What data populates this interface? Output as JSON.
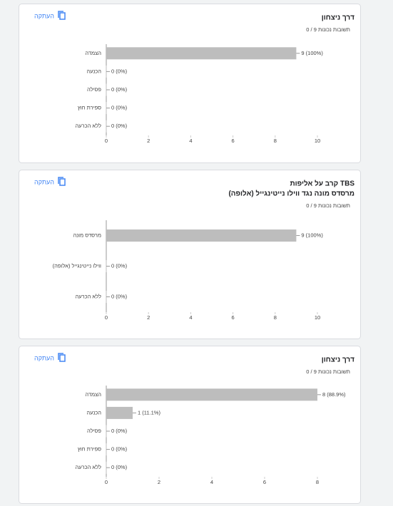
{
  "chart_data": [
    {
      "type": "bar",
      "orientation": "horizontal",
      "title": "דרך ניצחון",
      "score": "0 / 9 תשובות נכונות",
      "copy_button": "העתקה",
      "categories": [
        "הצמדה",
        "הכנעה",
        "פסילה",
        "ספירת חוץ",
        "ללא הכרעה"
      ],
      "values": [
        9,
        0,
        0,
        0,
        0
      ],
      "value_labels": [
        "9 (100%)",
        "0 (0%)",
        "0 (0%)",
        "0 (0%)",
        "0 (0%)"
      ],
      "color": "#bdbdbd",
      "xlim": [
        0,
        10
      ],
      "xticks": [
        0,
        2,
        4,
        6,
        8,
        10
      ]
    },
    {
      "type": "bar",
      "orientation": "horizontal",
      "title": "קרב על אליפות TBS",
      "subtitle": "מרסדס מונה נגד ווילו נייטינגייל (אלופה)",
      "score": "0 / 9 תשובות נכונות",
      "copy_button": "העתקה",
      "categories": [
        "מרסדס מונה",
        "ווילו נייטינגייל (אלופה)",
        "ללא הכרעה"
      ],
      "values": [
        9,
        0,
        0
      ],
      "value_labels": [
        "9 (100%)",
        "0 (0%)",
        "0 (0%)"
      ],
      "color": "#bdbdbd",
      "xlim": [
        0,
        10
      ],
      "xticks": [
        0,
        2,
        4,
        6,
        8,
        10
      ]
    },
    {
      "type": "bar",
      "orientation": "horizontal",
      "title": "דרך ניצחון",
      "score": "0 / 9 תשובות נכונות",
      "copy_button": "העתקה",
      "categories": [
        "הצמדה",
        "הכנעה",
        "פסילה",
        "ספירת חוץ",
        "ללא הכרעה"
      ],
      "values": [
        8,
        1,
        0,
        0,
        0
      ],
      "value_labels": [
        "8 (88.9%)",
        "1 (11.1%)",
        "0 (0%)",
        "0 (0%)",
        "0 (0%)"
      ],
      "color": "#bdbdbd",
      "xlim": [
        0,
        8
      ],
      "xticks": [
        0,
        2,
        4,
        6,
        8
      ]
    }
  ]
}
